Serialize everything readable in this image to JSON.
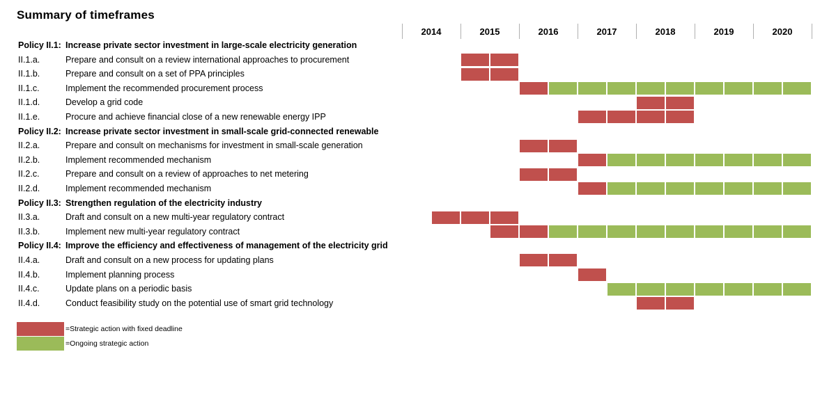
{
  "title": "Summary of timeframes",
  "colors": {
    "fixed": "#c0504d",
    "ongoing": "#9bbb59"
  },
  "chart_data": {
    "type": "gantt",
    "title": "Summary of timeframes",
    "years": [
      "2014",
      "2015",
      "2016",
      "2017",
      "2018",
      "2019",
      "2020"
    ],
    "unit": "half-years (2 cells per year, starting 2014 H1)",
    "rows": [
      {
        "kind": "policy",
        "code": "Policy II.1:",
        "label": "Increase private sector investment in large-scale electricity generation",
        "segments": []
      },
      {
        "kind": "action",
        "code": "II.1.a.",
        "label": "Prepare and consult on a review international approaches to procurement",
        "segments": [
          {
            "type": "fixed",
            "start": 2,
            "end": 4
          }
        ]
      },
      {
        "kind": "action",
        "code": "II.1.b.",
        "label": "Prepare and consult on a set of PPA principles",
        "segments": [
          {
            "type": "fixed",
            "start": 2,
            "end": 4
          }
        ]
      },
      {
        "kind": "action",
        "code": "II.1.c.",
        "label": "Implement the recommended procurement process",
        "segments": [
          {
            "type": "fixed",
            "start": 4,
            "end": 5
          },
          {
            "type": "ongoing",
            "start": 5,
            "end": 14
          }
        ]
      },
      {
        "kind": "action",
        "code": "II.1.d.",
        "label": "Develop a grid code",
        "segments": [
          {
            "type": "fixed",
            "start": 8,
            "end": 10
          }
        ]
      },
      {
        "kind": "action",
        "code": "II.1.e.",
        "label": "Procure and achieve financial close of a new renewable energy IPP",
        "segments": [
          {
            "type": "fixed",
            "start": 6,
            "end": 10
          }
        ]
      },
      {
        "kind": "policy",
        "code": "Policy II.2:",
        "label": "Increase private sector investment in small-scale grid-connected renewable",
        "segments": []
      },
      {
        "kind": "action",
        "code": "II.2.a.",
        "label": "Prepare and consult on mechanisms for investment in small-scale generation",
        "segments": [
          {
            "type": "fixed",
            "start": 4,
            "end": 6
          }
        ]
      },
      {
        "kind": "action",
        "code": "II.2.b.",
        "label": "Implement recommended mechanism",
        "segments": [
          {
            "type": "fixed",
            "start": 6,
            "end": 7
          },
          {
            "type": "ongoing",
            "start": 7,
            "end": 14
          }
        ]
      },
      {
        "kind": "action",
        "code": "II.2.c.",
        "label": "Prepare and consult on a review of approaches to net metering",
        "segments": [
          {
            "type": "fixed",
            "start": 4,
            "end": 6
          }
        ]
      },
      {
        "kind": "action",
        "code": "II.2.d.",
        "label": "Implement recommended mechanism",
        "segments": [
          {
            "type": "fixed",
            "start": 6,
            "end": 7
          },
          {
            "type": "ongoing",
            "start": 7,
            "end": 14
          }
        ]
      },
      {
        "kind": "policy",
        "code": "Policy II.3:",
        "label": " Strengthen  regulation of the electricity industry",
        "segments": []
      },
      {
        "kind": "action",
        "code": "II.3.a.",
        "label": "Draft and consult on a new multi-year regulatory contract",
        "segments": [
          {
            "type": "fixed",
            "start": 1,
            "end": 4
          }
        ]
      },
      {
        "kind": "action",
        "code": "II.3.b.",
        "label": "Implement new multi-year regulatory contract",
        "segments": [
          {
            "type": "fixed",
            "start": 3,
            "end": 5
          },
          {
            "type": "ongoing",
            "start": 5,
            "end": 14
          }
        ]
      },
      {
        "kind": "policy",
        "code": "Policy II.4:",
        "label": "Improve the efficiency and effectiveness of management of the electricity grid",
        "segments": []
      },
      {
        "kind": "action",
        "code": "II.4.a.",
        "label": "Draft and consult on a new process for updating plans",
        "segments": [
          {
            "type": "fixed",
            "start": 4,
            "end": 6
          }
        ]
      },
      {
        "kind": "action",
        "code": "II.4.b.",
        "label": "Implement planning process",
        "segments": [
          {
            "type": "fixed",
            "start": 6,
            "end": 7
          }
        ]
      },
      {
        "kind": "action",
        "code": "II.4.c.",
        "label": "Update plans on a periodic basis",
        "segments": [
          {
            "type": "ongoing",
            "start": 7,
            "end": 14
          }
        ]
      },
      {
        "kind": "action",
        "code": "II.4.d.",
        "label": "Conduct feasibility study on the potential use of smart grid technology",
        "segments": [
          {
            "type": "fixed",
            "start": 8,
            "end": 10
          }
        ]
      }
    ],
    "legend": [
      {
        "type": "fixed",
        "label": "=Strategic action with fixed deadline"
      },
      {
        "type": "ongoing",
        "label": "=Ongoing strategic action"
      }
    ]
  }
}
